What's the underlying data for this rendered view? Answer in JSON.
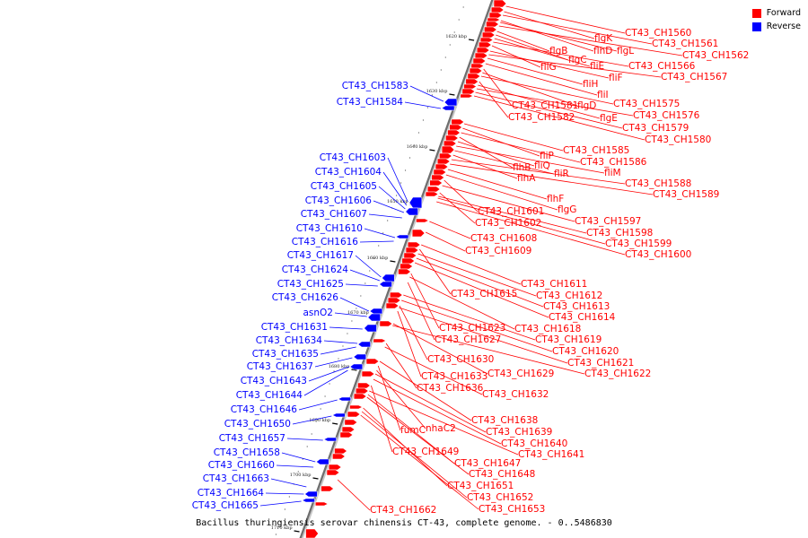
{
  "legend": {
    "forward_label": "Forward",
    "reverse_label": "Reverse",
    "forward_color": "#ff0000",
    "reverse_color": "#0000ff"
  },
  "caption": "Bacillus thuringiensis serovar chinensis CT-43, complete genome. - 0..5486830",
  "ticks": [
    "1620 kbp",
    "1630 kbp",
    "1640 kbp",
    "1650 kbp",
    "1660 kbp",
    "1670 kbp",
    "1680 kbp",
    "1690 kbp",
    "1700 kbp",
    "1710 kbp"
  ],
  "forward_genes": [
    "CT43_CH1560",
    "flgK",
    "CT43_CH1561",
    "flhD",
    "flgL",
    "CT43_CH1562",
    "flgB",
    "flgC",
    "fliE",
    "CT43_CH1566",
    "fliG",
    "fliF",
    "CT43_CH1567",
    "fliH",
    "fliI",
    "CT43_CH1581",
    "flgD",
    "CT43_CH1575",
    "CT43_CH1582",
    "flgE",
    "CT43_CH1576",
    "CT43_CH1579",
    "CT43_CH1580",
    "CT43_CH1585",
    "fliP",
    "CT43_CH1586",
    "flhB",
    "fliQ",
    "fliM",
    "fliR",
    "flhA",
    "CT43_CH1588",
    "CT43_CH1589",
    "flhF",
    "flgG",
    "CT43_CH1601",
    "CT43_CH1597",
    "CT43_CH1602",
    "CT43_CH1598",
    "CT43_CH1608",
    "CT43_CH1599",
    "CT43_CH1609",
    "CT43_CH1600",
    "CT43_CH1611",
    "CT43_CH1615",
    "CT43_CH1612",
    "CT43_CH1613",
    "CT43_CH1614",
    "CT43_CH1623",
    "CT43_CH1618",
    "CT43_CH1627",
    "CT43_CH1619",
    "CT43_CH1620",
    "CT43_CH1630",
    "CT43_CH1621",
    "CT43_CH1633",
    "CT43_CH1629",
    "CT43_CH1622",
    "CT43_CH1636",
    "CT43_CH1632",
    "CT43_CH1638",
    "fumC",
    "nhaC2",
    "CT43_CH1639",
    "CT43_CH1640",
    "CT43_CH1649",
    "CT43_CH1641",
    "CT43_CH1647",
    "CT43_CH1648",
    "CT43_CH1651",
    "CT43_CH1652",
    "CT43_CH1653",
    "CT43_CH1662"
  ],
  "reverse_genes": [
    "CT43_CH1583",
    "CT43_CH1584",
    "CT43_CH1603",
    "CT43_CH1604",
    "CT43_CH1605",
    "CT43_CH1606",
    "CT43_CH1607",
    "CT43_CH1610",
    "CT43_CH1616",
    "CT43_CH1617",
    "CT43_CH1624",
    "CT43_CH1625",
    "CT43_CH1626",
    "asnO2",
    "CT43_CH1631",
    "CT43_CH1634",
    "CT43_CH1635",
    "CT43_CH1637",
    "CT43_CH1643",
    "CT43_CH1644",
    "CT43_CH1646",
    "CT43_CH1650",
    "CT43_CH1657",
    "CT43_CH1658",
    "CT43_CH1660",
    "CT43_CH1663",
    "CT43_CH1664",
    "CT43_CH1665"
  ]
}
